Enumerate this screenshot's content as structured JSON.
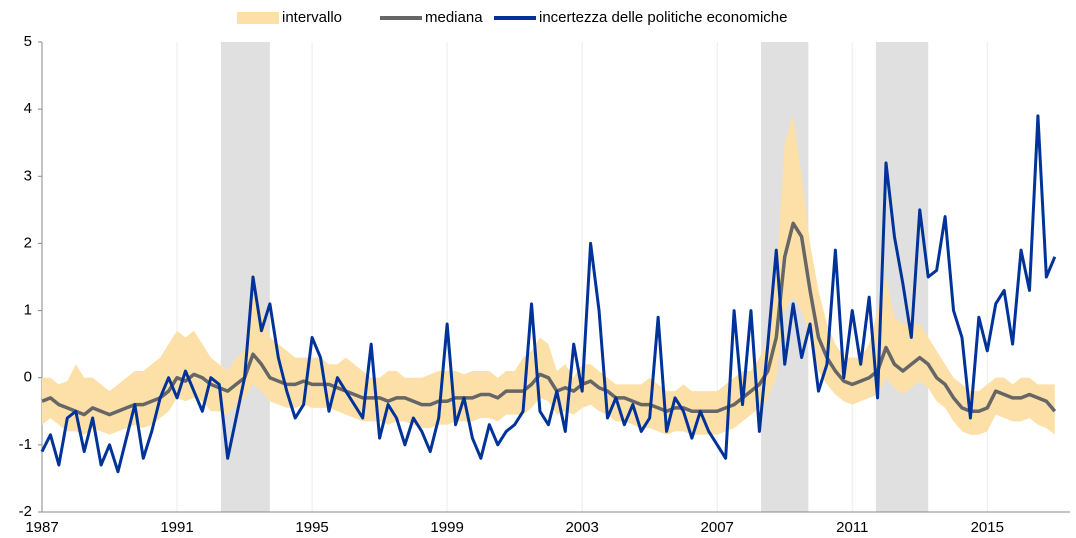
{
  "chart_data": {
    "type": "line",
    "x": [
      1987,
      1987.25,
      1987.5,
      1987.75,
      1988,
      1988.25,
      1988.5,
      1988.75,
      1989,
      1989.25,
      1989.5,
      1989.75,
      1990,
      1990.25,
      1990.5,
      1990.75,
      1991,
      1991.25,
      1991.5,
      1991.75,
      1992,
      1992.25,
      1992.5,
      1992.75,
      1993,
      1993.25,
      1993.5,
      1993.75,
      1994,
      1994.25,
      1994.5,
      1994.75,
      1995,
      1995.25,
      1995.5,
      1995.75,
      1996,
      1996.25,
      1996.5,
      1996.75,
      1997,
      1997.25,
      1997.5,
      1997.75,
      1998,
      1998.25,
      1998.5,
      1998.75,
      1999,
      1999.25,
      1999.5,
      1999.75,
      2000,
      2000.25,
      2000.5,
      2000.75,
      2001,
      2001.25,
      2001.5,
      2001.75,
      2002,
      2002.25,
      2002.5,
      2002.75,
      2003,
      2003.25,
      2003.5,
      2003.75,
      2004,
      2004.25,
      2004.5,
      2004.75,
      2005,
      2005.25,
      2005.5,
      2005.75,
      2006,
      2006.25,
      2006.5,
      2006.75,
      2007,
      2007.25,
      2007.5,
      2007.75,
      2008,
      2008.25,
      2008.5,
      2008.75,
      2009,
      2009.25,
      2009.5,
      2009.75,
      2010,
      2010.25,
      2010.5,
      2010.75,
      2011,
      2011.25,
      2011.5,
      2011.75,
      2012,
      2012.25,
      2012.5,
      2012.75,
      2013,
      2013.25,
      2013.5,
      2013.75,
      2014,
      2014.25,
      2014.5,
      2014.75,
      2015,
      2015.25,
      2015.5,
      2015.75,
      2016,
      2016.25,
      2016.5,
      2016.75,
      2017
    ],
    "series": [
      {
        "name": "intervallo",
        "color": "#fde0a8",
        "upper": [
          0,
          0,
          -0.1,
          -0.05,
          0.2,
          0,
          0,
          -0.1,
          -0.2,
          -0.1,
          0,
          0.1,
          0.1,
          0.2,
          0.3,
          0.5,
          0.7,
          0.6,
          0.7,
          0.5,
          0.3,
          0.2,
          0.1,
          0.3,
          0.4,
          1.6,
          1,
          0.6,
          0.5,
          0.4,
          0.3,
          0.3,
          0.3,
          0.3,
          0.2,
          0.2,
          0.3,
          0.2,
          0.1,
          0,
          0,
          0.1,
          0.1,
          0,
          0,
          0,
          0.05,
          0.1,
          0.1,
          0.1,
          0.05,
          0.1,
          0.1,
          0.1,
          0,
          0.1,
          0.1,
          0.3,
          0.4,
          0.6,
          0.5,
          0.1,
          0.2,
          0,
          0.2,
          0.2,
          0.1,
          0,
          -0.1,
          -0.1,
          -0.1,
          -0.1,
          0,
          -0.1,
          -0.2,
          -0.2,
          -0.1,
          -0.2,
          -0.2,
          -0.2,
          -0.2,
          -0.1,
          0,
          0.1,
          0.1,
          0.3,
          0.6,
          1.5,
          3.5,
          3.9,
          3,
          2,
          1.3,
          0.8,
          0.5,
          0.3,
          0.3,
          0.3,
          0.5,
          1,
          1.5,
          0.9,
          0.8,
          0.8,
          0.8,
          0.6,
          0.4,
          0.2,
          0,
          -0.1,
          -0.2,
          -0.2,
          -0.1,
          0,
          0,
          -0.1,
          0,
          0,
          -0.1,
          -0.1,
          -0.1
        ],
        "lower": [
          -0.7,
          -0.6,
          -0.7,
          -0.8,
          -0.8,
          -0.85,
          -0.75,
          -0.8,
          -0.85,
          -0.8,
          -0.75,
          -0.7,
          -0.75,
          -0.7,
          -0.6,
          -0.5,
          -0.3,
          -0.35,
          -0.3,
          -0.35,
          -0.5,
          -0.5,
          -0.55,
          -0.4,
          -0.3,
          -0.1,
          -0.2,
          -0.35,
          -0.4,
          -0.45,
          -0.45,
          -0.4,
          -0.45,
          -0.45,
          -0.45,
          -0.5,
          -0.55,
          -0.6,
          -0.65,
          -0.65,
          -0.65,
          -0.7,
          -0.65,
          -0.65,
          -0.7,
          -0.75,
          -0.75,
          -0.7,
          -0.7,
          -0.65,
          -0.65,
          -0.65,
          -0.6,
          -0.6,
          -0.65,
          -0.55,
          -0.55,
          -0.55,
          -0.45,
          -0.3,
          -0.35,
          -0.55,
          -0.5,
          -0.55,
          -0.45,
          -0.4,
          -0.5,
          -0.55,
          -0.65,
          -0.65,
          -0.7,
          -0.75,
          -0.75,
          -0.8,
          -0.85,
          -0.8,
          -0.8,
          -0.85,
          -0.85,
          -0.85,
          -0.85,
          -0.8,
          -0.75,
          -0.65,
          -0.55,
          -0.45,
          -0.3,
          0,
          1,
          1.2,
          1,
          0.6,
          0.1,
          -0.1,
          -0.25,
          -0.35,
          -0.4,
          -0.35,
          -0.3,
          -0.25,
          0,
          -0.15,
          -0.25,
          -0.15,
          -0.05,
          -0.15,
          -0.35,
          -0.45,
          -0.65,
          -0.8,
          -0.85,
          -0.85,
          -0.8,
          -0.55,
          -0.6,
          -0.65,
          -0.65,
          -0.6,
          -0.7,
          -0.75,
          -0.85
        ]
      },
      {
        "name": "mediana",
        "color": "#666666",
        "values": [
          -0.35,
          -0.3,
          -0.4,
          -0.45,
          -0.5,
          -0.55,
          -0.45,
          -0.5,
          -0.55,
          -0.5,
          -0.45,
          -0.4,
          -0.4,
          -0.35,
          -0.3,
          -0.2,
          0,
          -0.05,
          0.05,
          0,
          -0.1,
          -0.15,
          -0.2,
          -0.1,
          0,
          0.35,
          0.2,
          0,
          -0.05,
          -0.1,
          -0.1,
          -0.05,
          -0.1,
          -0.1,
          -0.1,
          -0.15,
          -0.2,
          -0.25,
          -0.3,
          -0.3,
          -0.3,
          -0.35,
          -0.3,
          -0.3,
          -0.35,
          -0.4,
          -0.4,
          -0.35,
          -0.35,
          -0.3,
          -0.3,
          -0.3,
          -0.25,
          -0.25,
          -0.3,
          -0.2,
          -0.2,
          -0.2,
          -0.1,
          0.05,
          0,
          -0.2,
          -0.15,
          -0.2,
          -0.1,
          -0.05,
          -0.15,
          -0.2,
          -0.3,
          -0.3,
          -0.35,
          -0.4,
          -0.4,
          -0.45,
          -0.5,
          -0.45,
          -0.45,
          -0.5,
          -0.5,
          -0.5,
          -0.5,
          -0.45,
          -0.4,
          -0.3,
          -0.2,
          -0.1,
          0.1,
          0.6,
          1.8,
          2.3,
          2.1,
          1.3,
          0.6,
          0.3,
          0.1,
          -0.05,
          -0.1,
          -0.05,
          0,
          0.1,
          0.45,
          0.2,
          0.1,
          0.2,
          0.3,
          0.2,
          0,
          -0.1,
          -0.3,
          -0.45,
          -0.5,
          -0.5,
          -0.45,
          -0.2,
          -0.25,
          -0.3,
          -0.3,
          -0.25,
          -0.3,
          -0.35,
          -0.5
        ]
      },
      {
        "name": "incertezza delle politiche economiche",
        "color": "#003399",
        "values": [
          -1.1,
          -0.85,
          -1.3,
          -0.6,
          -0.5,
          -1.1,
          -0.6,
          -1.3,
          -1,
          -1.4,
          -0.9,
          -0.4,
          -1.2,
          -0.8,
          -0.3,
          0,
          -0.3,
          0.1,
          -0.2,
          -0.5,
          0,
          -0.1,
          -1.2,
          -0.6,
          0,
          1.5,
          0.7,
          1.1,
          0.3,
          -0.2,
          -0.6,
          -0.4,
          0.6,
          0.3,
          -0.5,
          0,
          -0.2,
          -0.4,
          -0.6,
          0.5,
          -0.9,
          -0.4,
          -0.6,
          -1,
          -0.6,
          -0.8,
          -1.1,
          -0.6,
          0.8,
          -0.7,
          -0.3,
          -0.9,
          -1.2,
          -0.7,
          -1,
          -0.8,
          -0.7,
          -0.5,
          1.1,
          -0.5,
          -0.7,
          -0.2,
          -0.8,
          0.5,
          -0.2,
          2,
          1,
          -0.6,
          -0.3,
          -0.7,
          -0.4,
          -0.8,
          -0.6,
          0.9,
          -0.8,
          -0.3,
          -0.5,
          -0.9,
          -0.5,
          -0.8,
          -1,
          -1.2,
          1,
          -0.4,
          1,
          -0.8,
          0.5,
          1.9,
          0.2,
          1.1,
          0.3,
          0.8,
          -0.2,
          0.2,
          1.9,
          0,
          1,
          0.2,
          1.2,
          -0.3,
          3.2,
          2.1,
          1.4,
          0.6,
          2.5,
          1.5,
          1.6,
          2.4,
          1,
          0.6,
          -0.6,
          0.9,
          0.4,
          1.1,
          1.3,
          0.5,
          1.9,
          1.3,
          3.9,
          1.5,
          1.8
        ]
      }
    ],
    "shaded_periods": [
      [
        1992.3,
        1993.75
      ],
      [
        2008.3,
        2009.7
      ],
      [
        2011.7,
        2013.25
      ]
    ],
    "xlim": [
      1987,
      2017.45
    ],
    "xticks": [
      1987,
      1991,
      1995,
      1999,
      2003,
      2007,
      2011,
      2015
    ],
    "ylim": [
      -2,
      5
    ],
    "yticks": [
      -2,
      -1,
      0,
      1,
      2,
      3,
      4,
      5
    ]
  }
}
